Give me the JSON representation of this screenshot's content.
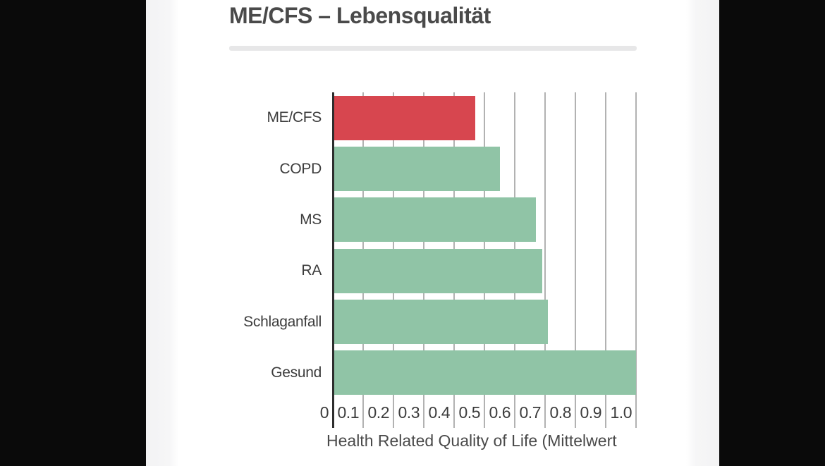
{
  "page": {
    "outer_background": "#0a0a0a",
    "card_background": "#ffffff",
    "edge_shadow_color": "#f5f5f6"
  },
  "chart_data": {
    "type": "bar",
    "orientation": "horizontal",
    "title": "ME/CFS – Lebensqualität",
    "categories": [
      "ME/CFS",
      "COPD",
      "MS",
      "RA",
      "Schlaganfall",
      "Gesund"
    ],
    "values": [
      0.47,
      0.55,
      0.67,
      0.69,
      0.71,
      1.0
    ],
    "bar_colors": [
      "#d7464f",
      "#90c4a6",
      "#90c4a6",
      "#90c4a6",
      "#90c4a6",
      "#90c4a6"
    ],
    "highlight_color": "#d7464f",
    "base_color": "#90c4a6",
    "xlabel": "Health Related Quality of Life (Mittelwert",
    "xticks": [
      "0",
      "0.1",
      "0.2",
      "0.3",
      "0.4",
      "0.5",
      "0.6",
      "0.7",
      "0.8",
      "0.9",
      "1.0"
    ],
    "xtick_values": [
      0,
      0.1,
      0.2,
      0.3,
      0.4,
      0.5,
      0.6,
      0.7,
      0.8,
      0.9,
      1.0
    ],
    "xlim": [
      0,
      1.0
    ],
    "grid": "vertical-only",
    "gridline_color": "#b2b2b2",
    "axis_line_color": "#2d2d2d",
    "legend": "none",
    "title_divider_color": "#e7e7e8"
  }
}
